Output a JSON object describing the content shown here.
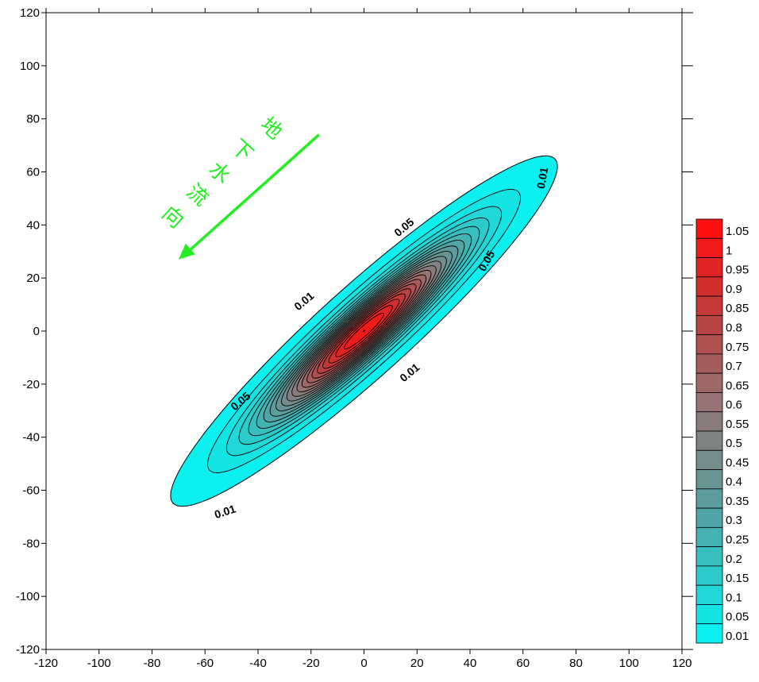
{
  "chart_data": {
    "type": "contour",
    "title": "",
    "xlabel": "",
    "ylabel": "",
    "xlim": [
      -120,
      120
    ],
    "ylim": [
      -120,
      120
    ],
    "x_ticks": [
      -120,
      -100,
      -80,
      -60,
      -40,
      -20,
      0,
      20,
      40,
      60,
      80,
      100,
      120
    ],
    "y_ticks": [
      -120,
      -100,
      -80,
      -60,
      -40,
      -20,
      0,
      20,
      40,
      60,
      80,
      100,
      120
    ],
    "grid": false,
    "plume": {
      "center": [
        0,
        0
      ],
      "axis_angle_deg": 42,
      "peak_value": 1.05,
      "outer_extent_major": 97,
      "outer_extent_minor": 17
    },
    "contour_levels": [
      0.01,
      0.05,
      0.1,
      0.15,
      0.2,
      0.25,
      0.3,
      0.35,
      0.4,
      0.45,
      0.5,
      0.55,
      0.6,
      0.65,
      0.7,
      0.75,
      0.8,
      0.85,
      0.9,
      0.95,
      1,
      1.05
    ],
    "contour_labels": [
      "0.01",
      "0.05",
      "0.05",
      "0.01",
      "0.05",
      "0.01",
      "0.01",
      "0.05"
    ],
    "colorbar": {
      "labels": [
        "1.05",
        "1",
        "0.95",
        "0.9",
        "0.85",
        "0.8",
        "0.75",
        "0.7",
        "0.65",
        "0.6",
        "0.55",
        "0.5",
        "0.45",
        "0.4",
        "0.35",
        "0.3",
        "0.25",
        "0.2",
        "0.15",
        "0.1",
        "0.05",
        "0.01"
      ],
      "colors": [
        "#ff1010",
        "#f01a1a",
        "#e02424",
        "#d22e2e",
        "#c43838",
        "#b84444",
        "#ae5050",
        "#a45c5c",
        "#9e6868",
        "#967474",
        "#8a7c7c",
        "#7e8282",
        "#748c8c",
        "#689494",
        "#5c9c9c",
        "#50a6a6",
        "#44b2b2",
        "#38bebe",
        "#2ccaca",
        "#20d8d8",
        "#14e4e4",
        "#0cf0f0"
      ]
    },
    "annotation": {
      "chars": [
        "地",
        "下",
        "水",
        "流",
        "向"
      ],
      "arrow_color": "#22ee22",
      "arrow_from": [
        -17,
        74
      ],
      "arrow_to": [
        -70,
        27
      ]
    }
  }
}
